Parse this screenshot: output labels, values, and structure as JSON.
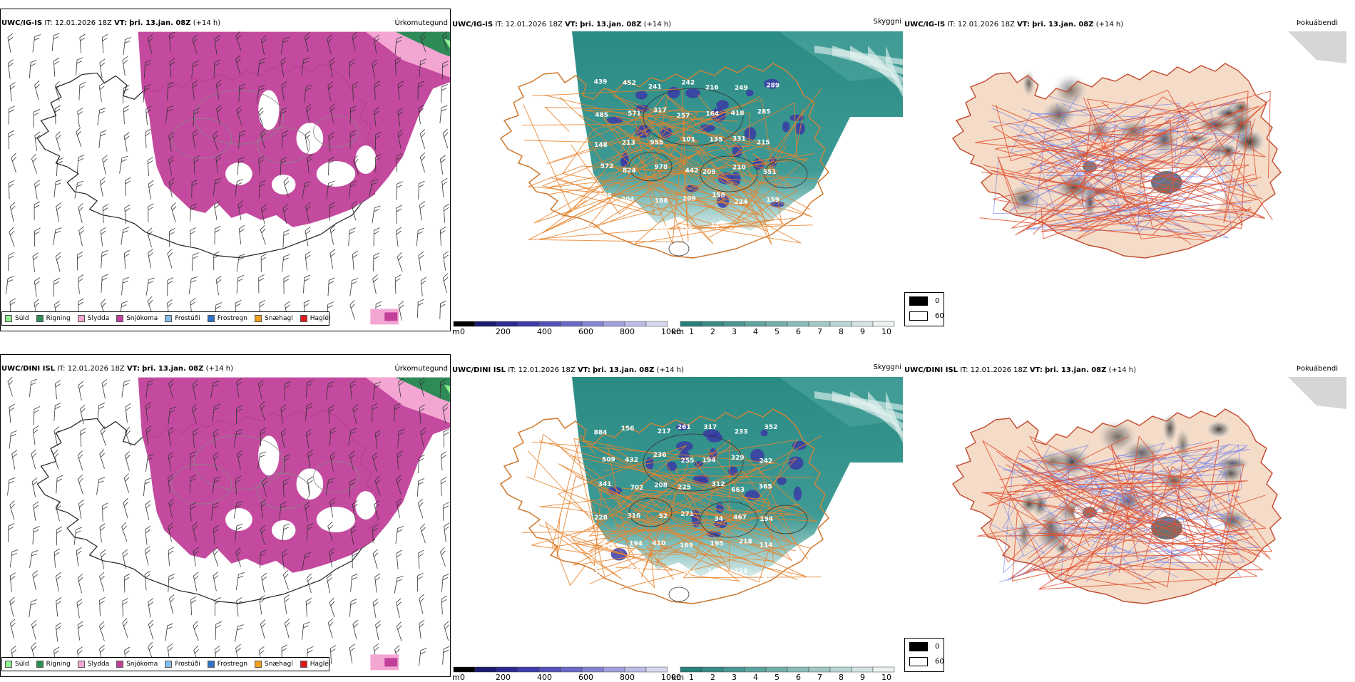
{
  "rows": [
    {
      "model": "UWC/IG-IS",
      "it_label": "IT:",
      "it_value": "12.01.2026 18Z",
      "vt_label": "VT:",
      "vt_value": "þri. 13.jan. 08Z",
      "lead": "(+14 h)",
      "titles": {
        "precip": "Úrkomutegund",
        "cloud": "Skyggni",
        "fog": "Þokuábendi"
      },
      "ceiling_labels": [
        "439",
        "452",
        "241",
        "242",
        "216",
        "249",
        "289",
        "485",
        "571",
        "317",
        "257",
        "164",
        "418",
        "285",
        "148",
        "213",
        "955",
        "101",
        "135",
        "331",
        "215",
        "572",
        "824",
        "978",
        "442",
        "209",
        "210",
        "551",
        "158",
        "204",
        "188",
        "209",
        "158",
        "224",
        "159",
        "306",
        "223",
        "228",
        "736",
        "11"
      ]
    },
    {
      "model": "UWC/DINI ISL",
      "it_label": "IT:",
      "it_value": "12.01.2026 18Z",
      "vt_label": "VT:",
      "vt_value": "þri. 13.jan. 08Z",
      "lead": "(+14 h)",
      "titles": {
        "precip": "Úrkomutegund",
        "cloud": "Skyggni",
        "fog": "Þokuábendi"
      },
      "ceiling_labels": [
        "884",
        "156",
        "217",
        "261",
        "317",
        "233",
        "352",
        "509",
        "432",
        "236",
        "255",
        "194",
        "329",
        "242",
        "341",
        "702",
        "208",
        "225",
        "312",
        "663",
        "365",
        "228",
        "316",
        "52",
        "271",
        "34",
        "467",
        "194",
        "948",
        "194",
        "410",
        "169",
        "195",
        "218",
        "114",
        "133",
        "203",
        "136",
        "304",
        "144",
        "223",
        "20"
      ]
    }
  ],
  "precip_legend": [
    {
      "label": "Súld",
      "color": "#90ee90"
    },
    {
      "label": "Rigning",
      "color": "#2e8b57"
    },
    {
      "label": "Slydda",
      "color": "#f4a6d2"
    },
    {
      "label": "Snjókoma",
      "color": "#c0409a"
    },
    {
      "label": "Frostúði",
      "color": "#87bde8"
    },
    {
      "label": "Frostregn",
      "color": "#2f6fc4"
    },
    {
      "label": "Snæhagl",
      "color": "#f0a020"
    },
    {
      "label": "Haglél",
      "color": "#e01818"
    }
  ],
  "ceiling_bar": {
    "unit": "m",
    "ticks": [
      "0",
      "200",
      "400",
      "600",
      "800",
      "1000"
    ],
    "colors": [
      "#000000",
      "#1a1a6e",
      "#2b2b90",
      "#3d3da8",
      "#5252b8",
      "#6a6ac6",
      "#8484d2",
      "#a0a0dc",
      "#bcbce6",
      "#d6d6f0"
    ]
  },
  "visibility_bar": {
    "unit": "km",
    "ticks": [
      "1",
      "2",
      "3",
      "4",
      "5",
      "6",
      "7",
      "8",
      "9",
      "10"
    ],
    "colors": [
      "#2a7f7a",
      "#3a8b86",
      "#4c9792",
      "#5fa39f",
      "#74afab",
      "#8abcb8",
      "#a2c9c6",
      "#bad6d4",
      "#d2e4e2",
      "#ebf2f1"
    ]
  },
  "fog_legend": {
    "items": [
      {
        "value": "0",
        "color": "#000000"
      },
      {
        "value": "60",
        "color": "#ffffff"
      }
    ]
  },
  "colors": {
    "snow": "#c0409a",
    "rain": "#2e8b57",
    "sleet": "#f4a6d2",
    "cloud_teal": "#2a8a84",
    "fog_land": "#f5dcc8",
    "roads": "#e8822a",
    "roads_fog": "#e05030",
    "rivers": "#7080e8"
  }
}
